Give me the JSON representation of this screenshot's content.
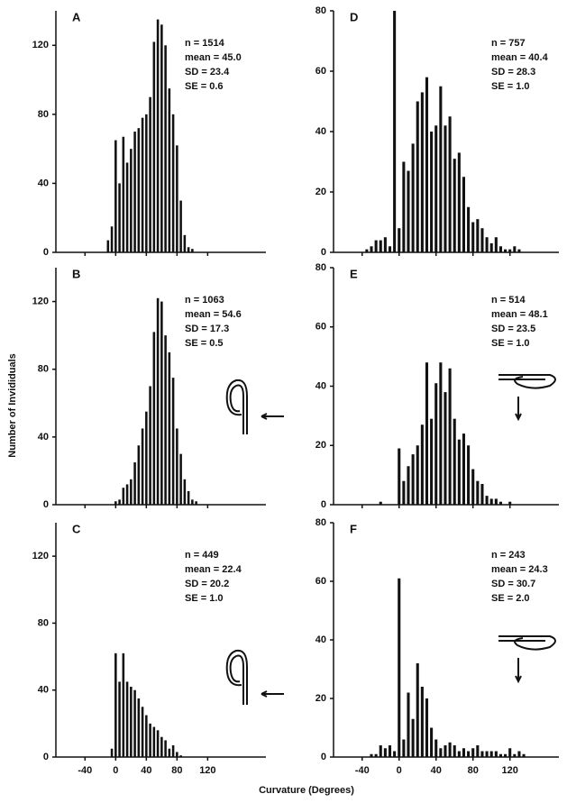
{
  "xlabel": "Curvature (Degrees)",
  "ylabel": "Number of Invididuals",
  "chart_data": [
    {
      "type": "bar",
      "panel": "A",
      "stats": [
        "n = 1514",
        "mean = 45.0",
        "SD = 23.4",
        "SE = 0.6"
      ],
      "color": "#111111",
      "x": [
        -10,
        -5,
        0,
        5,
        10,
        15,
        20,
        25,
        30,
        35,
        40,
        45,
        50,
        55,
        60,
        65,
        70,
        75,
        80,
        85,
        90,
        95,
        100
      ],
      "values": [
        7,
        15,
        65,
        40,
        67,
        52,
        60,
        70,
        72,
        78,
        80,
        90,
        122,
        135,
        132,
        120,
        95,
        80,
        62,
        30,
        10,
        3,
        2
      ],
      "xlim": [
        -78,
        196
      ],
      "ylim": [
        0,
        140
      ],
      "xticks": [
        -40,
        0,
        40,
        80,
        120
      ],
      "yticks": [
        0,
        40,
        80,
        120
      ],
      "xticklabels": false
    },
    {
      "type": "bar",
      "panel": "D",
      "stats": [
        "n = 757",
        "mean = 40.4",
        "SD = 28.3",
        "SE = 1.0"
      ],
      "color": "#111111",
      "x": [
        -35,
        -30,
        -25,
        -20,
        -15,
        -10,
        -5,
        0,
        5,
        10,
        15,
        20,
        25,
        30,
        35,
        40,
        45,
        50,
        55,
        60,
        65,
        70,
        75,
        80,
        85,
        90,
        95,
        100,
        105,
        110,
        115,
        120,
        125,
        130
      ],
      "values": [
        1,
        2,
        4,
        4,
        5,
        2,
        80,
        8,
        30,
        27,
        36,
        50,
        53,
        58,
        40,
        42,
        55,
        42,
        45,
        31,
        33,
        25,
        15,
        10,
        11,
        8,
        5,
        3,
        5,
        2,
        1,
        1,
        2,
        1
      ],
      "xlim": [
        -71,
        173
      ],
      "ylim": [
        0,
        80
      ],
      "xticks": [
        -40,
        0,
        40,
        80,
        120
      ],
      "yticks": [
        0,
        20,
        40,
        60,
        80
      ],
      "xticklabels": false
    },
    {
      "type": "bar",
      "panel": "B",
      "stats": [
        "n = 1063",
        "mean = 54.6",
        "SD = 17.3",
        "SE = 0.5"
      ],
      "color": "#111111",
      "x": [
        0,
        5,
        10,
        15,
        20,
        25,
        30,
        35,
        40,
        45,
        50,
        55,
        60,
        65,
        70,
        75,
        80,
        85,
        90,
        95,
        100,
        105
      ],
      "values": [
        2,
        3,
        10,
        12,
        15,
        25,
        35,
        45,
        55,
        70,
        102,
        122,
        120,
        100,
        90,
        75,
        45,
        30,
        15,
        8,
        3,
        2
      ],
      "xlim": [
        -78,
        196
      ],
      "ylim": [
        0,
        140
      ],
      "xticks": [
        -40,
        0,
        40,
        80,
        120
      ],
      "yticks": [
        0,
        40,
        80,
        120
      ],
      "xticklabels": false
    },
    {
      "type": "bar",
      "panel": "E",
      "stats": [
        "n = 514",
        "mean = 48.1",
        "SD = 23.5",
        "SE = 1.0"
      ],
      "color": "#111111",
      "x": [
        -20,
        0,
        5,
        10,
        15,
        20,
        25,
        30,
        35,
        40,
        45,
        50,
        55,
        60,
        65,
        70,
        75,
        80,
        85,
        90,
        95,
        100,
        105,
        110,
        120
      ],
      "values": [
        1,
        19,
        8,
        13,
        17,
        20,
        27,
        48,
        29,
        41,
        48,
        38,
        46,
        29,
        22,
        24,
        20,
        12,
        8,
        7,
        3,
        2,
        2,
        1,
        1
      ],
      "xlim": [
        -71,
        173
      ],
      "ylim": [
        0,
        80
      ],
      "xticks": [
        -40,
        0,
        40,
        80,
        120
      ],
      "yticks": [
        0,
        20,
        40,
        60,
        80
      ],
      "xticklabels": false
    },
    {
      "type": "bar",
      "panel": "C",
      "stats": [
        "n = 449",
        "mean = 22.4",
        "SD = 20.2",
        "SE = 1.0"
      ],
      "color": "#111111",
      "x": [
        -5,
        0,
        5,
        10,
        15,
        20,
        25,
        30,
        35,
        40,
        45,
        50,
        55,
        60,
        65,
        70,
        75,
        80,
        85
      ],
      "values": [
        5,
        62,
        45,
        62,
        45,
        42,
        40,
        35,
        30,
        25,
        20,
        18,
        16,
        12,
        10,
        5,
        7,
        3,
        1
      ],
      "xlim": [
        -78,
        196
      ],
      "ylim": [
        0,
        140
      ],
      "xticks": [
        -40,
        0,
        40,
        80,
        120
      ],
      "yticks": [
        0,
        40,
        80,
        120
      ],
      "xticklabels": true
    },
    {
      "type": "bar",
      "panel": "F",
      "stats": [
        "n = 243",
        "mean = 24.3",
        "SD = 30.7",
        "SE = 2.0"
      ],
      "color": "#111111",
      "x": [
        -30,
        -25,
        -20,
        -15,
        -10,
        -5,
        0,
        5,
        10,
        15,
        20,
        25,
        30,
        35,
        40,
        45,
        50,
        55,
        60,
        65,
        70,
        75,
        80,
        85,
        90,
        95,
        100,
        105,
        110,
        115,
        120,
        125,
        130,
        135
      ],
      "values": [
        1,
        1,
        4,
        3,
        4,
        2,
        61,
        6,
        22,
        13,
        32,
        24,
        20,
        10,
        6,
        3,
        4,
        5,
        4,
        2,
        3,
        2,
        3,
        4,
        2,
        2,
        2,
        2,
        1,
        1,
        3,
        1,
        2,
        1
      ],
      "xlim": [
        -71,
        173
      ],
      "ylim": [
        0,
        80
      ],
      "xticks": [
        -40,
        0,
        40,
        80,
        120
      ],
      "yticks": [
        0,
        20,
        40,
        60,
        80
      ],
      "xticklabels": true
    }
  ]
}
